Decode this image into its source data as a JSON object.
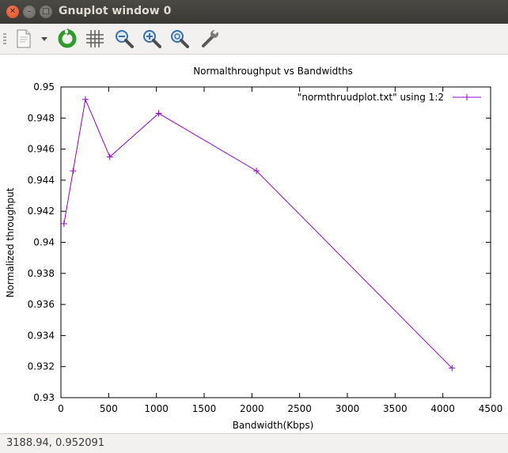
{
  "window": {
    "title": "Gnuplot window 0"
  },
  "titlebar": {
    "close_glyph": "✕",
    "min_glyph": "–",
    "max_glyph": "□"
  },
  "toolbar": {
    "items": [
      {
        "name": "copy-to-clipboard-icon"
      },
      {
        "name": "dropdown-arrow-icon"
      },
      {
        "name": "replot-icon"
      },
      {
        "name": "grid-icon"
      },
      {
        "name": "zoom-out-icon"
      },
      {
        "name": "zoom-in-icon"
      },
      {
        "name": "zoom-fit-icon"
      },
      {
        "name": "preferences-wrench-icon"
      }
    ]
  },
  "chart_data": {
    "type": "line",
    "title": "Normalthroughput vs Bandwidths",
    "xlabel": "Bandwidth(Kbps)",
    "ylabel": "Normalized throughput",
    "xlim": [
      0,
      4500
    ],
    "ylim": [
      0.93,
      0.95
    ],
    "x_ticks": [
      "0",
      "500",
      "1000",
      "1500",
      "2000",
      "2500",
      "3000",
      "3500",
      "4000",
      "4500"
    ],
    "y_ticks": [
      "0.93",
      "0.932",
      "0.934",
      "0.936",
      "0.938",
      "0.94",
      "0.942",
      "0.944",
      "0.946",
      "0.948",
      "0.95"
    ],
    "legend_position": "top-right",
    "grid": false,
    "series": [
      {
        "name": "\"normthruudplot.txt\" using 1:2",
        "color": "#9400d3",
        "points": [
          {
            "x": 32,
            "y": 0.9412
          },
          {
            "x": 128,
            "y": 0.9446
          },
          {
            "x": 256,
            "y": 0.9492
          },
          {
            "x": 512,
            "y": 0.9455
          },
          {
            "x": 1024,
            "y": 0.9483
          },
          {
            "x": 2048,
            "y": 0.9446
          },
          {
            "x": 4096,
            "y": 0.9319
          }
        ]
      }
    ]
  },
  "status": {
    "coords": "3188.94,  0.952091"
  }
}
